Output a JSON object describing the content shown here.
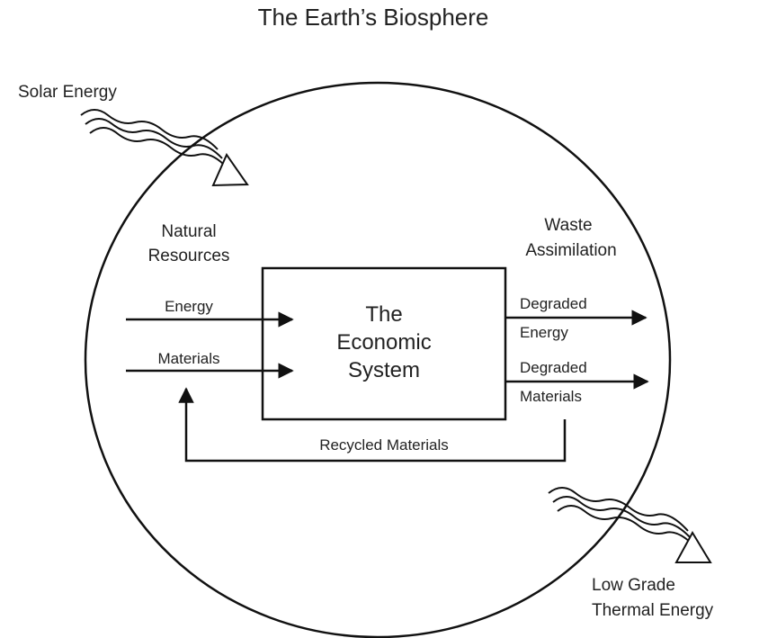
{
  "title": "The Earth’s Biosphere",
  "inputs": {
    "source": "Solar Energy",
    "group": [
      "Natural",
      "Resources"
    ],
    "energy": "Energy",
    "materials": "Materials"
  },
  "system": [
    "The",
    "Economic",
    "System"
  ],
  "outputs": {
    "group": [
      "Waste",
      "Assimilation"
    ],
    "energy": [
      "Degraded",
      "Energy"
    ],
    "materials": [
      "Degraded",
      "Materials"
    ],
    "sink": [
      "Low Grade",
      "Thermal Energy"
    ]
  },
  "loop": "Recycled Materials"
}
